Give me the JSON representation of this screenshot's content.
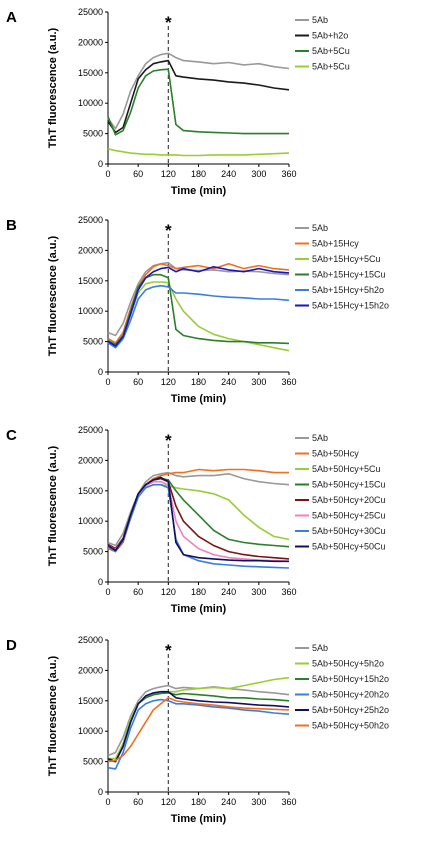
{
  "chart_data": [
    {
      "type": "line",
      "panel": "A",
      "xlabel": "Time (min)",
      "ylabel": "ThT fluorescence (a.u.)",
      "xlim": [
        0,
        360
      ],
      "ylim": [
        0,
        25000
      ],
      "xticks": [
        0,
        60,
        120,
        180,
        240,
        300,
        360
      ],
      "yticks": [
        0,
        5000,
        10000,
        15000,
        20000,
        25000
      ],
      "annotation": "*",
      "annotation_x": 120,
      "x": [
        0,
        15,
        30,
        45,
        60,
        75,
        90,
        105,
        120,
        135,
        150,
        180,
        210,
        240,
        270,
        300,
        330,
        360
      ],
      "series": [
        {
          "name": "5Ab",
          "color": "#999999",
          "values": [
            7500,
            5800,
            8200,
            12000,
            14500,
            16500,
            17500,
            18000,
            18200,
            17500,
            17000,
            16800,
            16500,
            16700,
            16300,
            16500,
            16000,
            15700
          ]
        },
        {
          "name": "5Ab+h2o",
          "color": "#1a1a1a",
          "values": [
            7000,
            5200,
            6000,
            10000,
            14000,
            15500,
            16500,
            16800,
            17000,
            14500,
            14300,
            14000,
            13800,
            13500,
            13300,
            13000,
            12500,
            12200
          ]
        },
        {
          "name": "5Ab+5Cu",
          "color": "#2a7f2a",
          "values": [
            7800,
            4800,
            5500,
            8500,
            12500,
            14500,
            15300,
            15500,
            15600,
            6500,
            5500,
            5300,
            5200,
            5100,
            5000,
            5000,
            5000,
            5000
          ]
        },
        {
          "name": "5Ab+5Cu",
          "color": "#9acd32",
          "values": [
            2500,
            2200,
            2000,
            1800,
            1700,
            1600,
            1600,
            1500,
            1500,
            1500,
            1400,
            1400,
            1500,
            1500,
            1500,
            1600,
            1700,
            1800
          ]
        }
      ]
    },
    {
      "type": "line",
      "panel": "B",
      "xlabel": "Time (min)",
      "ylabel": "ThT fluorescence (a.u.)",
      "xlim": [
        0,
        360
      ],
      "ylim": [
        0,
        25000
      ],
      "xticks": [
        0,
        60,
        120,
        180,
        240,
        300,
        360
      ],
      "yticks": [
        0,
        5000,
        10000,
        15000,
        20000,
        25000
      ],
      "annotation": "*",
      "annotation_x": 120,
      "x": [
        0,
        15,
        30,
        45,
        60,
        75,
        90,
        105,
        120,
        135,
        150,
        180,
        210,
        240,
        270,
        300,
        330,
        360
      ],
      "series": [
        {
          "name": "5Ab",
          "color": "#999999",
          "values": [
            6500,
            6000,
            8000,
            11500,
            14500,
            16500,
            17500,
            17800,
            18000,
            17000,
            16800,
            16700,
            16800,
            16500,
            16600,
            16500,
            16200,
            16000
          ]
        },
        {
          "name": "5Ab+15Hcy",
          "color": "#f07020",
          "values": [
            5500,
            4800,
            6500,
            10500,
            14000,
            16000,
            17300,
            17800,
            17500,
            17000,
            17200,
            17500,
            17000,
            17800,
            17000,
            17500,
            17000,
            16800
          ]
        },
        {
          "name": "5Ab+15Hcy+5Cu",
          "color": "#9acd32",
          "values": [
            5000,
            4500,
            6000,
            9500,
            13000,
            14500,
            14800,
            14800,
            14700,
            12000,
            10000,
            7500,
            6200,
            5500,
            5000,
            4500,
            4000,
            3500
          ]
        },
        {
          "name": "5Ab+15Hcy+15Cu",
          "color": "#2a7f2a",
          "values": [
            5200,
            4500,
            6000,
            10000,
            14000,
            15500,
            16000,
            16000,
            15500,
            7000,
            6000,
            5500,
            5200,
            5000,
            5000,
            4800,
            4800,
            4700
          ]
        },
        {
          "name": "5Ab+15Hcy+5h2o",
          "color": "#3a7de0",
          "values": [
            4800,
            4000,
            5500,
            8500,
            12000,
            13500,
            14000,
            14200,
            14000,
            13000,
            13000,
            12800,
            12500,
            12300,
            12200,
            12000,
            12000,
            11800
          ]
        },
        {
          "name": "5Ab+15Hcy+15h2o",
          "color": "#1515cc",
          "values": [
            5000,
            4300,
            5800,
            9500,
            13500,
            15500,
            16500,
            17000,
            17200,
            16500,
            17000,
            16500,
            17300,
            16800,
            16500,
            17000,
            16500,
            16300
          ]
        }
      ]
    },
    {
      "type": "line",
      "panel": "C",
      "xlabel": "Time (min)",
      "ylabel": "ThT fluorescence (a.u.)",
      "xlim": [
        0,
        360
      ],
      "ylim": [
        0,
        25000
      ],
      "xticks": [
        0,
        60,
        120,
        180,
        240,
        300,
        360
      ],
      "yticks": [
        0,
        5000,
        10000,
        15000,
        20000,
        25000
      ],
      "annotation": "*",
      "annotation_x": 120,
      "x": [
        0,
        15,
        30,
        45,
        60,
        75,
        90,
        105,
        120,
        135,
        150,
        180,
        210,
        240,
        270,
        300,
        330,
        360
      ],
      "series": [
        {
          "name": "5Ab",
          "color": "#999999",
          "values": [
            6500,
            6000,
            8000,
            11500,
            14500,
            16500,
            17500,
            17800,
            18000,
            17500,
            17300,
            17500,
            17500,
            17800,
            17000,
            16500,
            16200,
            16000
          ]
        },
        {
          "name": "5Ab+50Hcy",
          "color": "#f07020",
          "values": [
            5500,
            5000,
            6500,
            10500,
            14000,
            16000,
            17000,
            17500,
            17800,
            18000,
            18000,
            18500,
            18300,
            18500,
            18500,
            18300,
            18000,
            18000
          ]
        },
        {
          "name": "5Ab+50Hcy+5Cu",
          "color": "#9acd32",
          "values": [
            6000,
            5200,
            6800,
            10500,
            14000,
            15500,
            16000,
            16000,
            15800,
            15500,
            15300,
            15000,
            14500,
            13500,
            11000,
            9000,
            7500,
            7000
          ]
        },
        {
          "name": "5Ab+50Hcy+15Cu",
          "color": "#2a7f2a",
          "values": [
            6000,
            5200,
            7000,
            11000,
            14500,
            16000,
            16800,
            17000,
            16800,
            15000,
            13500,
            11000,
            8500,
            7000,
            6500,
            6200,
            6000,
            5800
          ]
        },
        {
          "name": "5Ab+50Hcy+20Cu",
          "color": "#7a1414",
          "values": [
            6200,
            5500,
            7200,
            11000,
            14500,
            16000,
            16800,
            17000,
            16500,
            12500,
            10000,
            7500,
            6000,
            5000,
            4500,
            4200,
            4000,
            3800
          ]
        },
        {
          "name": "5Ab+50Hcy+25Cu",
          "color": "#f080c0",
          "values": [
            6000,
            5300,
            7000,
            10800,
            14300,
            15800,
            16500,
            16500,
            16000,
            10000,
            7500,
            5500,
            4500,
            4000,
            3800,
            3600,
            3500,
            3400
          ]
        },
        {
          "name": "5Ab+50Hcy+30Cu",
          "color": "#3a7de0",
          "values": [
            5800,
            5000,
            6800,
            10500,
            14000,
            15500,
            16000,
            16000,
            15500,
            7000,
            4500,
            3500,
            3000,
            2800,
            2600,
            2500,
            2400,
            2300
          ]
        },
        {
          "name": "5Ab+50Hcy+50Cu",
          "color": "#101060",
          "values": [
            6000,
            5200,
            7000,
            11000,
            14500,
            16000,
            16800,
            17200,
            16500,
            6500,
            4500,
            4000,
            3800,
            3600,
            3500,
            3500,
            3400,
            3400
          ]
        }
      ]
    },
    {
      "type": "line",
      "panel": "D",
      "xlabel": "Time (min)",
      "ylabel": "ThT fluorescence (a.u.)",
      "xlim": [
        0,
        360
      ],
      "ylim": [
        0,
        25000
      ],
      "xticks": [
        0,
        60,
        120,
        180,
        240,
        300,
        360
      ],
      "yticks": [
        0,
        5000,
        10000,
        15000,
        20000,
        25000
      ],
      "annotation": "*",
      "annotation_x": 120,
      "x": [
        0,
        15,
        30,
        45,
        60,
        75,
        90,
        105,
        120,
        135,
        150,
        180,
        210,
        240,
        270,
        300,
        330,
        360
      ],
      "series": [
        {
          "name": "5Ab",
          "color": "#999999",
          "values": [
            6000,
            6500,
            9000,
            12500,
            15000,
            16500,
            17000,
            17300,
            17500,
            17000,
            17200,
            17000,
            17300,
            17000,
            16800,
            16500,
            16300,
            16000
          ]
        },
        {
          "name": "5Ab+50Hcy+5h2o",
          "color": "#9acd32",
          "values": [
            5500,
            5500,
            8000,
            12000,
            14500,
            15500,
            16000,
            16200,
            16500,
            16500,
            16800,
            17000,
            17200,
            17000,
            17500,
            18000,
            18500,
            18800
          ]
        },
        {
          "name": "5Ab+50Hcy+15h2o",
          "color": "#2a7f2a",
          "values": [
            5200,
            5000,
            7500,
            11500,
            14500,
            15500,
            16000,
            16200,
            16300,
            16000,
            16200,
            16000,
            15800,
            15500,
            15500,
            15300,
            15200,
            15000
          ]
        },
        {
          "name": "5Ab+50Hcy+20h2o",
          "color": "#3a7de0",
          "values": [
            4000,
            3800,
            6500,
            10500,
            13500,
            14500,
            15000,
            15200,
            15000,
            14500,
            14500,
            14300,
            14000,
            13800,
            13500,
            13300,
            13000,
            12800
          ]
        },
        {
          "name": "5Ab+50Hcy+25h2o",
          "color": "#101060",
          "values": [
            5500,
            5000,
            7500,
            11500,
            14500,
            15800,
            16300,
            16500,
            16500,
            15500,
            15300,
            15000,
            14800,
            14700,
            14500,
            14300,
            14200,
            14000
          ]
        },
        {
          "name": "5Ab+50Hcy+50h2o",
          "color": "#f07020",
          "values": [
            5000,
            5200,
            6000,
            7500,
            9500,
            11500,
            13500,
            14500,
            15500,
            15000,
            14800,
            14500,
            14300,
            14000,
            13800,
            13700,
            13600,
            13500
          ]
        }
      ]
    }
  ]
}
